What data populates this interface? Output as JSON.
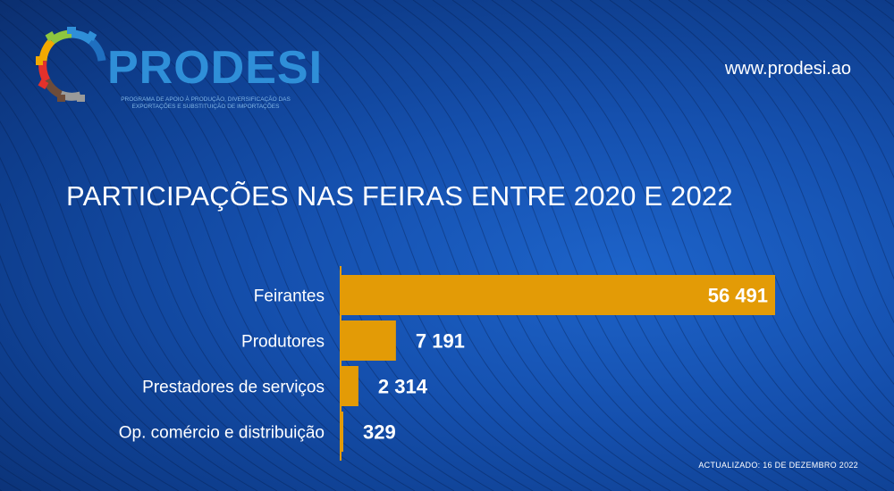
{
  "header": {
    "logo_text": "PRODESI",
    "logo_subtitle": "PROGRAMA DE APOIO À PRODUÇÃO, DIVERSIFICAÇÃO DAS EXPORTAÇÕES E SUBSTITUIÇÃO DE IMPORTAÇÕES",
    "website": "www.prodesi.ao"
  },
  "footer": {
    "updated": "ACTUALIZADO: 16 DE DEZEMBRO 2022"
  },
  "colors": {
    "bar": "#e39b06",
    "background": "#1550ae",
    "text": "#ffffff"
  },
  "chart_data": {
    "type": "bar",
    "orientation": "horizontal",
    "title": "PARTICIPAÇÕES NAS FEIRAS ENTRE 2020 E 2022",
    "categories": [
      "Feirantes",
      "Produtores",
      "Prestadores de serviços",
      "Op. comércio e distribuição"
    ],
    "values": [
      56491,
      7191,
      2314,
      329
    ],
    "value_labels": [
      "56 491",
      "7 191",
      "2 314",
      "329"
    ],
    "xlim": [
      0,
      56491
    ],
    "grid": false,
    "legend": "none"
  }
}
